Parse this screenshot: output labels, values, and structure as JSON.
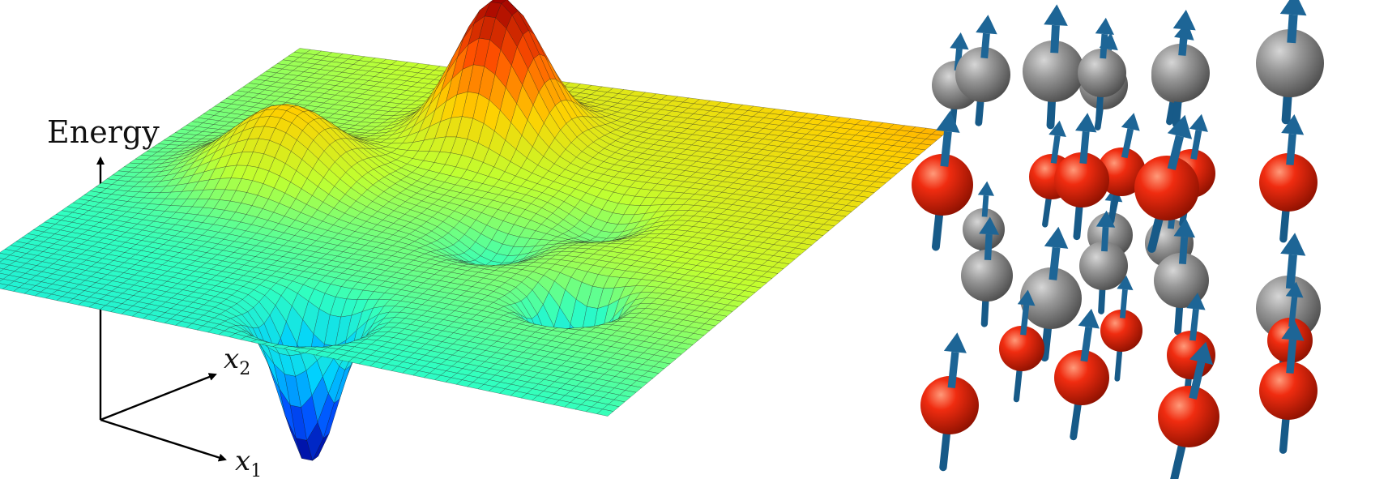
{
  "landscape": {
    "axis_energy_label": "Energy",
    "axis_x1_label": "x",
    "axis_x1_subscript": "1",
    "axis_x2_label": "x",
    "axis_x2_subscript": "2",
    "colormap": [
      "#00008f",
      "#0050ff",
      "#00d0ff",
      "#30ffc0",
      "#c0ff30",
      "#ffd000",
      "#ff5000",
      "#a00000"
    ],
    "mesh_line_color": "#1a1a1a"
  },
  "spin_lattice": {
    "atom_types": [
      {
        "name": "red-atom",
        "color": "#e8240c"
      },
      {
        "name": "gray-atom",
        "color": "#8c8c8c"
      }
    ],
    "spin_arrow_color": "#1d5f8f"
  }
}
